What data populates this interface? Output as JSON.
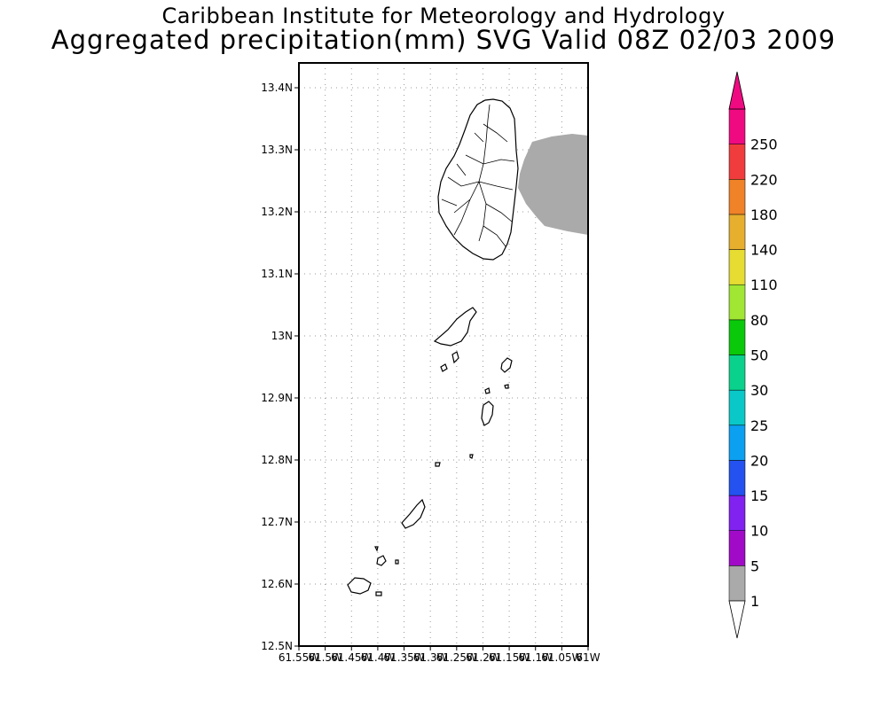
{
  "header": {
    "institute": "Caribbean Institute for Meteorology and Hydrology",
    "product": "Aggregated precipitation(mm) SVG Valid 08Z 02/03 2009"
  },
  "map": {
    "lon_range": [
      -61.55,
      -61.0
    ],
    "lat_range": [
      12.5,
      13.44
    ],
    "lat_ticks": [
      {
        "value": 13.4,
        "label": "13.4N"
      },
      {
        "value": 13.3,
        "label": "13.3N"
      },
      {
        "value": 13.2,
        "label": "13.2N"
      },
      {
        "value": 13.1,
        "label": "13.1N"
      },
      {
        "value": 13.0,
        "label": "13N"
      },
      {
        "value": 12.9,
        "label": "12.9N"
      },
      {
        "value": 12.8,
        "label": "12.8N"
      },
      {
        "value": 12.7,
        "label": "12.7N"
      },
      {
        "value": 12.6,
        "label": "12.6N"
      },
      {
        "value": 12.5,
        "label": "12.5N"
      }
    ],
    "lon_ticks": [
      {
        "value": -61.55,
        "label": "61.55W"
      },
      {
        "value": -61.5,
        "label": "61.5W"
      },
      {
        "value": -61.45,
        "label": "61.45W"
      },
      {
        "value": -61.4,
        "label": "61.4W"
      },
      {
        "value": -61.35,
        "label": "61.35W"
      },
      {
        "value": -61.3,
        "label": "61.3W"
      },
      {
        "value": -61.25,
        "label": "61.25W"
      },
      {
        "value": -61.2,
        "label": "61.2W"
      },
      {
        "value": -61.15,
        "label": "61.15W"
      },
      {
        "value": -61.1,
        "label": "61.1W"
      },
      {
        "value": -61.05,
        "label": "61.05W"
      },
      {
        "value": -61.0,
        "label": "61W"
      }
    ],
    "grid": true,
    "precip_fill_color": "#aaaaaa"
  },
  "colorbar": {
    "labels": [
      "1",
      "5",
      "10",
      "15",
      "20",
      "25",
      "30",
      "50",
      "80",
      "110",
      "140",
      "180",
      "220",
      "250"
    ],
    "colors": [
      "#aaaaaa",
      "#a10bc8",
      "#8222f0",
      "#2452f0",
      "#0ba0f0",
      "#0ac8c8",
      "#0ad28c",
      "#0ac80a",
      "#a0e632",
      "#e6dc32",
      "#e6af2d",
      "#f08228",
      "#f03c3c",
      "#f00a82"
    ],
    "lower_arrow_color": "#ffffff",
    "upper_arrow_color": "#f00a82"
  }
}
